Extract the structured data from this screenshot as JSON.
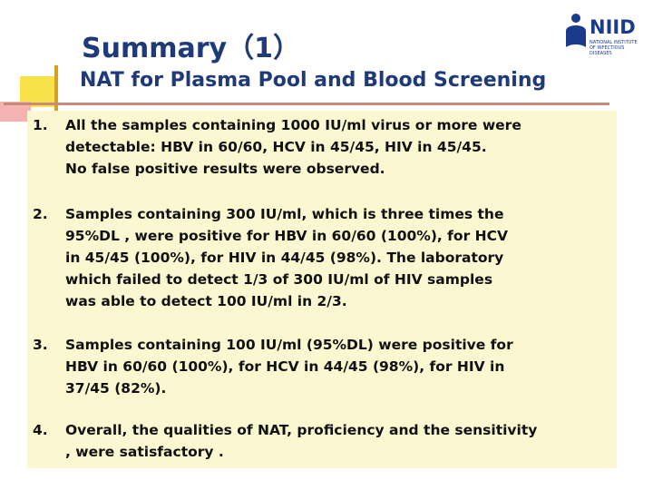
{
  "header": {
    "title": "Summary（1）",
    "subtitle": "NAT for Plasma Pool and Blood Screening"
  },
  "logo": {
    "text": "NIID",
    "small_text": "NATIONAL INSTITUTE OF INFECTIOUS DISEASES"
  },
  "items": [
    {
      "number": "1.",
      "lines": [
        "All the samples containing 1000 IU/ml virus or more were",
        "detectable: HBV in 60/60, HCV in 45/45, HIV in 45/45.",
        "No false positive results were observed."
      ]
    },
    {
      "number": "2.",
      "lines": [
        "Samples containing 300 IU/ml, which is three times the",
        "95%DL , were positive for HBV  in 60/60 (100%), for HCV",
        "in 45/45 (100%), for HIV in 44/45 (98%).  The laboratory",
        "which failed to detect 1/3 of 300 IU/ml of HIV samples",
        "was able to detect 100 IU/ml in 2/3."
      ]
    },
    {
      "number": "3.",
      "lines": [
        "Samples containing 100 IU/ml (95%DL) were positive for",
        "HBV in 60/60 (100%), for HCV in 44/45  (98%), for HIV in",
        "37/45 (82%)."
      ]
    },
    {
      "number": "4.",
      "lines": [
        "Overall, the qualities of NAT, proficiency  and the sensitivity",
        ", were satisfactory ."
      ]
    }
  ]
}
